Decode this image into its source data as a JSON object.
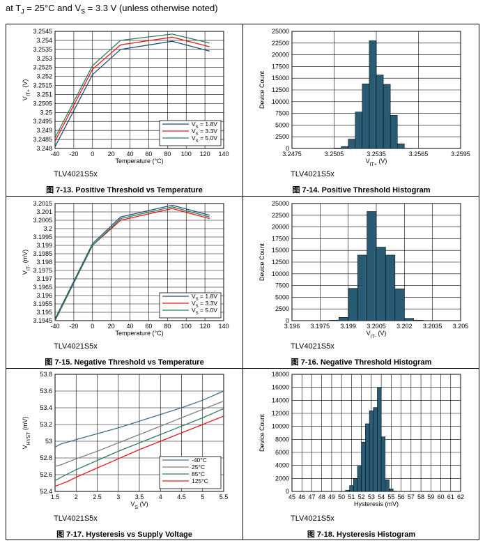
{
  "header": {
    "pre": "at T",
    "sub1": "J",
    "mid": " = 25°C and V",
    "sub2": "S",
    "post": " = 3.3 V (unless otherwise noted)"
  },
  "colors": {
    "line18": "#1f4e79",
    "line33": "#e31a1c",
    "line50": "#2e7d5b",
    "bar": "#2a5b74",
    "m40": "#3a6f86",
    "p25": "#808080",
    "p85": "#2e7d5b",
    "p125": "#e31a1c"
  },
  "charts": [
    {
      "id": "c1",
      "type": "line",
      "device": "TLV4021S5x",
      "caption": "图 7-13. Positive Threshold vs Temperature",
      "xlabel": "Temperature (°C)",
      "ylabel_main": "V",
      "ylabel_sub": "IT+",
      "ylabel_unit": " (V)",
      "xlim": [
        -40,
        140
      ],
      "ylim": [
        3.248,
        3.2545
      ],
      "xticks": [
        "-40",
        "-20",
        "0",
        "20",
        "40",
        "60",
        "80",
        "100",
        "120",
        "140"
      ],
      "yticks": [
        "3.248",
        "3.2485",
        "3.249",
        "3.2495",
        "3.25",
        "3.2505",
        "3.251",
        "3.2515",
        "3.252",
        "3.2525",
        "3.253",
        "3.2535",
        "3.254",
        "3.2545"
      ],
      "x": [
        -40,
        0,
        30,
        85,
        125
      ],
      "series": [
        {
          "label": "V",
          "label_sub": "S",
          "label_rest": " = 1.8V",
          "colorKey": "line18",
          "values": [
            3.2481,
            3.2521,
            3.2535,
            3.25395,
            3.2534
          ]
        },
        {
          "label": "V",
          "label_sub": "S",
          "label_rest": " = 3.3V",
          "colorKey": "line33",
          "values": [
            3.2484,
            3.2524,
            3.25375,
            3.25418,
            3.25365
          ]
        },
        {
          "label": "V",
          "label_sub": "S",
          "label_rest": " = 5.0V",
          "colorKey": "line50",
          "values": [
            3.2486,
            3.2526,
            3.254,
            3.25435,
            3.25385
          ]
        }
      ]
    },
    {
      "id": "c2",
      "type": "histogram",
      "device": "TLV4021S5x",
      "caption": "图 7-14. Positive Threshold Histogram",
      "xlabel_main": "V",
      "xlabel_sub": "IT+",
      "xlabel_unit": " (V)",
      "ylabel": "Device Count",
      "xlim": [
        3.2475,
        3.2595
      ],
      "ylim": [
        0,
        25000
      ],
      "xticks": [
        "3.2475",
        "3.2505",
        "3.2535",
        "3.2565",
        "3.2595"
      ],
      "yticks": [
        "0",
        "2500",
        "5000",
        "7500",
        "10000",
        "12500",
        "15000",
        "17500",
        "20000",
        "22500",
        "25000"
      ],
      "bin_start": 3.2505,
      "bin_width": 0.0005,
      "counts": [
        100,
        400,
        2000,
        7800,
        13800,
        23000,
        15700,
        13700,
        7100,
        1000,
        50
      ]
    },
    {
      "id": "c3",
      "type": "line",
      "device": "TLV4021S5x",
      "caption": "图 7-15. Negative Threshold vs Temperature",
      "xlabel": "Temperature (°C)",
      "ylabel_main": "V",
      "ylabel_sub": "IT-",
      "ylabel_unit": " (mV)",
      "xlim": [
        -40,
        140
      ],
      "ylim": [
        3.1945,
        3.2015
      ],
      "xticks": [
        "-40",
        "-20",
        "0",
        "20",
        "40",
        "60",
        "80",
        "100",
        "120",
        "140"
      ],
      "yticks": [
        "3.1945",
        "3.195",
        "3.1955",
        "3.196",
        "3.1965",
        "3.197",
        "3.1975",
        "3.198",
        "3.1985",
        "3.199",
        "3.1995",
        "3.2",
        "3.2005",
        "3.201",
        "3.2015"
      ],
      "x": [
        -40,
        0,
        30,
        85,
        125
      ],
      "series": [
        {
          "label": "V",
          "label_sub": "S",
          "label_rest": " = 1.8V",
          "colorKey": "line18",
          "values": [
            3.1946,
            3.1991,
            3.2007,
            3.2014,
            3.2008
          ]
        },
        {
          "label": "V",
          "label_sub": "S",
          "label_rest": " = 3.3V",
          "colorKey": "line33",
          "values": [
            3.1945,
            3.199,
            3.2005,
            3.2012,
            3.2006
          ]
        },
        {
          "label": "V",
          "label_sub": "S",
          "label_rest": " = 5.0V",
          "colorKey": "line50",
          "values": [
            3.1945,
            3.199,
            3.2006,
            3.2013,
            3.2007
          ]
        }
      ]
    },
    {
      "id": "c4",
      "type": "histogram",
      "device": "TLV4021S5x",
      "caption": "图 7-16. Negative Threshold Histogram",
      "xlabel_main": "V",
      "xlabel_sub": "IT-",
      "xlabel_unit": " (V)",
      "ylabel": "Device Count",
      "xlim": [
        3.196,
        3.205
      ],
      "ylim": [
        0,
        25000
      ],
      "xticks": [
        "3.196",
        "3.1975",
        "3.199",
        "3.2005",
        "3.202",
        "3.2035",
        "3.205"
      ],
      "yticks": [
        "0",
        "2500",
        "5000",
        "7500",
        "10000",
        "12500",
        "15000",
        "17500",
        "20000",
        "22500",
        "25000"
      ],
      "bin_start": 3.198,
      "bin_width": 0.0005,
      "counts": [
        100,
        700,
        6900,
        14000,
        23300,
        15700,
        14000,
        6800,
        500,
        100
      ]
    },
    {
      "id": "c5",
      "type": "line",
      "device": "TLV4021S5x",
      "caption": "图 7-17. Hysteresis vs Supply Voltage",
      "xlabel_main": "V",
      "xlabel_sub": "S",
      "xlabel_unit": " (V)",
      "ylabel_main": "V",
      "ylabel_sub": "HYST",
      "ylabel_unit": " (mV)",
      "xlim": [
        1.5,
        5.5
      ],
      "ylim": [
        52.4,
        53.8
      ],
      "xticks": [
        "1.5",
        "2",
        "2.5",
        "3",
        "3.5",
        "4",
        "4.5",
        "5",
        "5.5"
      ],
      "yticks": [
        "52.4",
        "52.6",
        "52.8",
        "53",
        "53.2",
        "53.4",
        "53.6",
        "53.8"
      ],
      "x": [
        1.5,
        1.65,
        1.8,
        2.0,
        2.5,
        3.0,
        3.5,
        4.0,
        4.5,
        5.0,
        5.5
      ],
      "series": [
        {
          "label": "-40°C",
          "colorKey": "m40",
          "values": [
            52.93,
            52.97,
            52.99,
            53.02,
            53.09,
            53.16,
            53.24,
            53.32,
            53.4,
            53.49,
            53.6
          ]
        },
        {
          "label": "25°C",
          "colorKey": "p25",
          "values": [
            52.7,
            52.72,
            52.75,
            52.79,
            52.88,
            52.98,
            53.08,
            53.18,
            53.28,
            53.38,
            53.48
          ]
        },
        {
          "label": "85°C",
          "colorKey": "p85",
          "values": [
            52.53,
            52.57,
            52.61,
            52.66,
            52.77,
            52.88,
            52.98,
            53.08,
            53.18,
            53.28,
            53.39
          ]
        },
        {
          "label": "125°C",
          "colorKey": "p125",
          "values": [
            52.46,
            52.49,
            52.52,
            52.57,
            52.68,
            52.79,
            52.9,
            53.0,
            53.1,
            53.2,
            53.3
          ]
        }
      ]
    },
    {
      "id": "c6",
      "type": "histogram",
      "device": "TLV4021S5x",
      "caption": "图 7-18. Hysteresis Histogram",
      "xlabel": "Hysteresis (mV)",
      "ylabel": "Device Count",
      "xlim": [
        45,
        62
      ],
      "ylim": [
        0,
        18000
      ],
      "xticks": [
        "45",
        "46",
        "47",
        "48",
        "49",
        "50",
        "51",
        "52",
        "53",
        "54",
        "55",
        "56",
        "57",
        "58",
        "59",
        "60",
        "61",
        "62"
      ],
      "yticks": [
        "0",
        "2000",
        "4000",
        "6000",
        "8000",
        "10000",
        "12000",
        "14000",
        "16000",
        "18000"
      ],
      "bin_start": 50,
      "bin_width": 0.4,
      "counts": [
        30,
        200,
        900,
        2000,
        3900,
        7600,
        10400,
        12400,
        12900,
        16000,
        8400,
        1800,
        400,
        50
      ]
    }
  ]
}
